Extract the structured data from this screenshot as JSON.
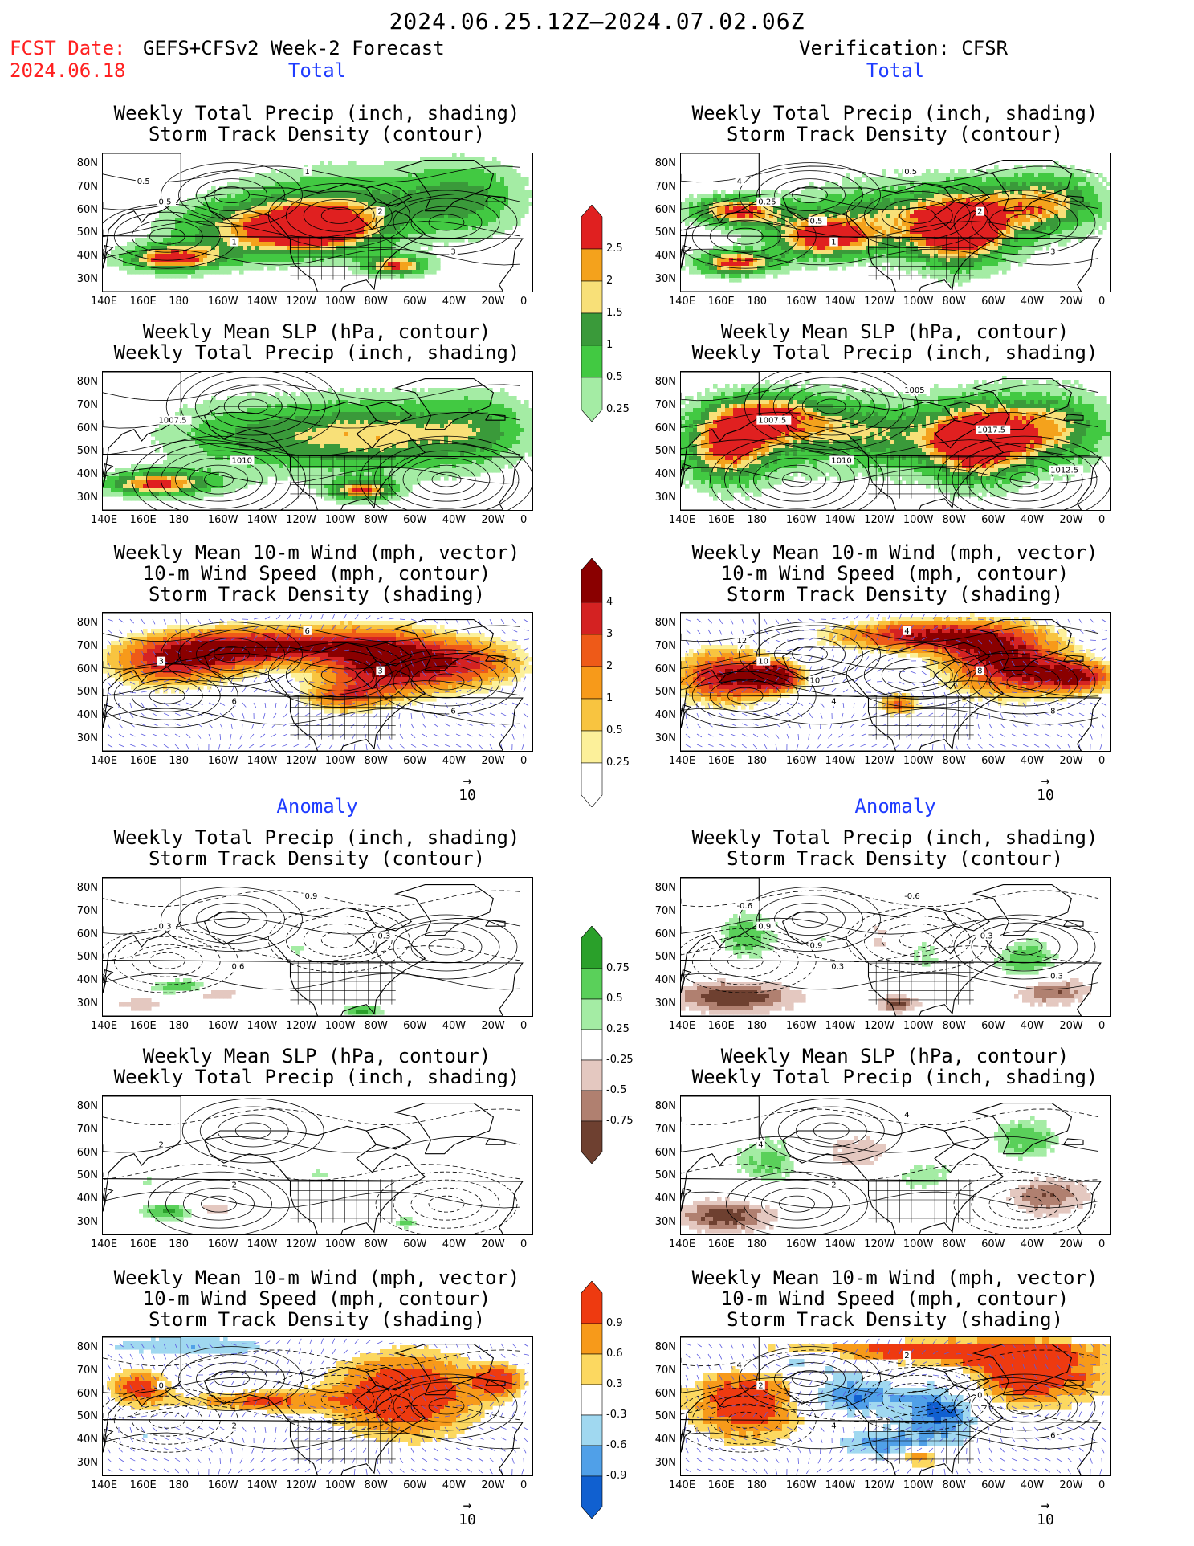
{
  "header": {
    "period": "2024.06.25.12Z—2024.07.02.06Z",
    "fcst_label": "FCST Date:",
    "fcst_date": "2024.06.18",
    "model": "GEFS+CFSv2 Week-2 Forecast",
    "verification": "Verification: CFSR"
  },
  "sections": {
    "total": "Total",
    "anomaly": "Anomaly"
  },
  "panel_titles": {
    "precip_storm": [
      "Weekly Total Precip (inch, shading)",
      "Storm Track Density (contour)"
    ],
    "slp_precip": [
      "Weekly Mean SLP (hPa, contour)",
      "Weekly Total Precip (inch, shading)"
    ],
    "wind": [
      "Weekly Mean 10-m Wind (mph, vector)",
      "10-m Wind Speed (mph, contour)",
      "Storm Track Density (shading)"
    ]
  },
  "axes": {
    "lat_labels": [
      "80N",
      "70N",
      "60N",
      "50N",
      "40N",
      "30N"
    ],
    "lon_labels": [
      "140E",
      "160E",
      "180",
      "160W",
      "140W",
      "120W",
      "100W",
      "80W",
      "60W",
      "40W",
      "20W",
      "0"
    ]
  },
  "vector_ref": {
    "arrow": "→",
    "value": "10"
  },
  "colorbars": {
    "total_precip": {
      "labels": [
        "2.5",
        "2",
        "1.5",
        "1",
        "0.5",
        "0.25"
      ],
      "colors": [
        "#e02020",
        "#f4a21c",
        "#f8e078",
        "#3a9a3a",
        "#42c942",
        "#a4eca4"
      ]
    },
    "total_storm": {
      "labels": [
        "4",
        "3",
        "2",
        "1",
        "0.5",
        "0.25"
      ],
      "colors": [
        "#8a0000",
        "#d42222",
        "#ee5a18",
        "#f79a1a",
        "#f8c440",
        "#fcf09a",
        "#ffffff"
      ]
    },
    "anom_precip": {
      "labels": [
        "0.75",
        "0.5",
        "0.25",
        "-0.25",
        "-0.5",
        "-0.75"
      ],
      "colors": [
        "#2aa02a",
        "#5ad05a",
        "#a4eca4",
        "#ffffff",
        "#e4c8c0",
        "#b08070",
        "#6e4030"
      ]
    },
    "anom_storm": {
      "labels": [
        "0.9",
        "0.6",
        "0.3",
        "-0.3",
        "-0.6",
        "-0.9"
      ],
      "colors": [
        "#ee3a10",
        "#f79a1a",
        "#fcd860",
        "#ffffff",
        "#a0d8f0",
        "#50a0e8",
        "#1060d0"
      ]
    }
  },
  "contour_labels": {
    "fcst_precip": [
      "0.5",
      "1",
      "1",
      "2",
      "3",
      "0.5"
    ],
    "obs_precip": [
      "0.25",
      "1",
      "0.5",
      "2",
      "3",
      "4",
      "0.5"
    ],
    "fcst_slp": [
      "1007.5",
      "1010"
    ],
    "obs_slp": [
      "1007.5",
      "1010",
      "1005",
      "1017.5",
      "1012.5"
    ],
    "fcst_wind": [
      "3",
      "6",
      "6",
      "3",
      "6"
    ],
    "obs_wind": [
      "10",
      "4",
      "4",
      "8",
      "8",
      "12",
      "10"
    ],
    "fcst_anom_precip": [
      "0.3",
      "0.6",
      "0.9",
      "0.3"
    ],
    "obs_anom_precip": [
      "0.9",
      "0.3",
      "-0.6",
      "-0.3",
      "0.3",
      "-0.6",
      "0.9"
    ],
    "fcst_anom_slp": [
      "2",
      "2"
    ],
    "obs_anom_slp": [
      "4",
      "2",
      "4"
    ],
    "fcst_anom_wind": [
      "0",
      "2"
    ],
    "obs_anom_wind": [
      "2",
      "4",
      "2",
      "0",
      "6",
      "4"
    ]
  }
}
